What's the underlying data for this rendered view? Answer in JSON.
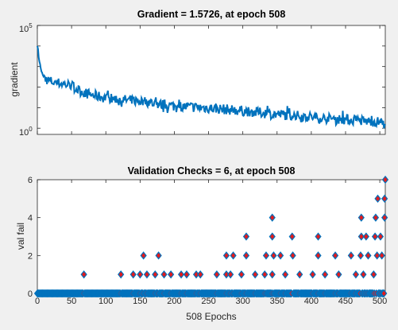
{
  "chart_data": [
    {
      "type": "line",
      "title": "Gradient = 1.5726, at epoch 508",
      "xlabel": "",
      "ylabel": "gradient",
      "yscale": "log",
      "xlim": [
        0,
        508
      ],
      "ylim": [
        0.5,
        100000
      ],
      "yticks": [
        {
          "value": 1,
          "base": "10",
          "exp": "0"
        },
        {
          "value": 100000,
          "base": "10",
          "exp": "5"
        }
      ],
      "xtick_labels_visible": false,
      "line_color": "#0072bd",
      "x": [
        0,
        2,
        5,
        8,
        12,
        18,
        25,
        35,
        50,
        60,
        75,
        90,
        100,
        120,
        140,
        160,
        180,
        200,
        220,
        240,
        260,
        280,
        300,
        320,
        340,
        360,
        380,
        400,
        420,
        440,
        460,
        480,
        500,
        508
      ],
      "y": [
        12000,
        3000,
        800,
        350,
        250,
        200,
        170,
        150,
        120,
        70,
        45,
        35,
        30,
        25,
        22,
        20,
        14,
        12,
        11,
        10,
        9,
        8,
        7,
        6,
        5,
        4.5,
        4,
        3.5,
        3,
        2.8,
        2.5,
        2.2,
        2,
        1.5726
      ]
    },
    {
      "type": "scatter",
      "title": "Validation Checks = 6, at epoch 508",
      "xlabel": "508 Epochs",
      "ylabel": "val fail",
      "xlim": [
        0,
        508
      ],
      "ylim": [
        0,
        6
      ],
      "xticks": [
        0,
        50,
        100,
        150,
        200,
        250,
        300,
        350,
        400,
        450,
        500
      ],
      "yticks": [
        0,
        2,
        4,
        6
      ],
      "marker": "diamond",
      "marker_face": "#e41a1c",
      "marker_edge": "#0072bd",
      "points_value_1": [
        68,
        122,
        140,
        150,
        160,
        172,
        185,
        195,
        210,
        218,
        232,
        238,
        262,
        276,
        282,
        298,
        318,
        332,
        343,
        362,
        383,
        402,
        420,
        440,
        465,
        476,
        491
      ],
      "points_value_2": [
        155,
        177,
        276,
        286,
        305,
        334,
        345,
        355,
        373,
        410,
        435,
        458,
        472,
        483,
        496,
        503
      ],
      "points_value_3": [
        305,
        343,
        372,
        410,
        473,
        480,
        493,
        501
      ],
      "points_value_4": [
        343,
        473,
        494,
        507
      ],
      "points_value_5": [
        497,
        507
      ],
      "points_value_6": [
        508
      ]
    }
  ]
}
